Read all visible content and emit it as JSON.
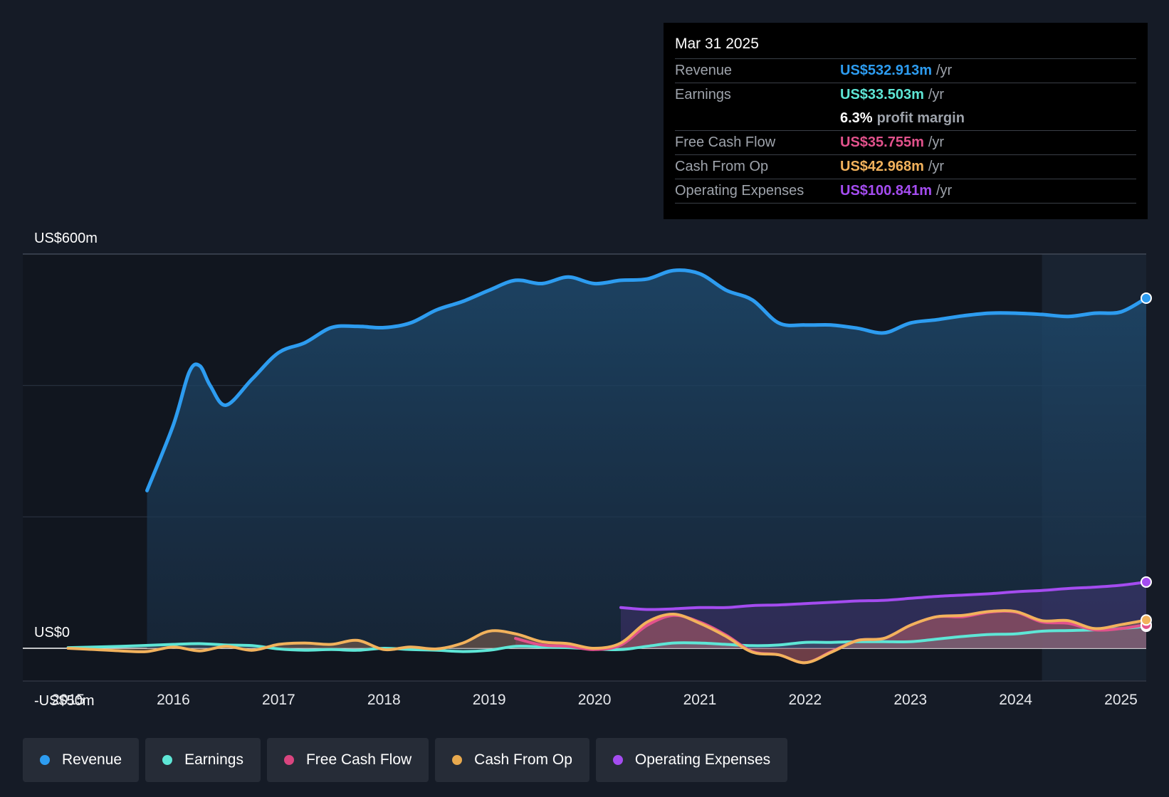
{
  "tooltip": {
    "date": "Mar 31 2025",
    "rows": [
      {
        "name": "Revenue",
        "value": "US$532.913m",
        "unit": "/yr",
        "color": "#2d9cf0"
      },
      {
        "name": "Earnings",
        "value": "US$33.503m",
        "unit": "/yr",
        "color": "#5ee6d6"
      },
      {
        "name": "",
        "value": "6.3%",
        "unit": "profit margin",
        "color": "#ffffff"
      },
      {
        "name": "Free Cash Flow",
        "value": "US$35.755m",
        "unit": "/yr",
        "color": "#e2528c"
      },
      {
        "name": "Cash From Op",
        "value": "US$42.968m",
        "unit": "/yr",
        "color": "#f2b25c"
      },
      {
        "name": "Operating Expenses",
        "value": "US$100.841m",
        "unit": "/yr",
        "color": "#a44cf0"
      }
    ]
  },
  "legend": [
    {
      "label": "Revenue",
      "color": "#2d9cf0"
    },
    {
      "label": "Earnings",
      "color": "#5ee6d6"
    },
    {
      "label": "Free Cash Flow",
      "color": "#d9457f"
    },
    {
      "label": "Cash From Op",
      "color": "#e8a94e"
    },
    {
      "label": "Operating Expenses",
      "color": "#a44cf0"
    }
  ],
  "chart_data": {
    "type": "area",
    "ylim": [
      -50,
      600
    ],
    "y_axis_labels": [
      "US$600m",
      "US$0",
      "-US$50m"
    ],
    "x_ticks": [
      "2015",
      "2016",
      "2017",
      "2018",
      "2019",
      "2020",
      "2021",
      "2022",
      "2023",
      "2024",
      "2025"
    ],
    "xlim": [
      2014.57,
      2025.24
    ],
    "forecast_shade_start": 2024.25,
    "series": [
      {
        "name": "Revenue",
        "color": "#2d9cf0",
        "x": [
          2015.75,
          2016.0,
          2016.15,
          2016.25,
          2016.35,
          2016.5,
          2016.75,
          2017.0,
          2017.25,
          2017.5,
          2017.75,
          2018.0,
          2018.25,
          2018.5,
          2018.75,
          2019.0,
          2019.25,
          2019.5,
          2019.75,
          2020.0,
          2020.25,
          2020.5,
          2020.75,
          2021.0,
          2021.25,
          2021.5,
          2021.75,
          2022.0,
          2022.25,
          2022.5,
          2022.75,
          2023.0,
          2023.25,
          2023.5,
          2023.75,
          2024.0,
          2024.25,
          2024.5,
          2024.75,
          2025.0,
          2025.24
        ],
        "values": [
          240,
          340,
          420,
          430,
          400,
          370,
          410,
          450,
          465,
          488,
          490,
          488,
          495,
          515,
          528,
          545,
          560,
          555,
          565,
          555,
          560,
          562,
          575,
          570,
          545,
          530,
          495,
          492,
          492,
          487,
          480,
          495,
          500,
          506,
          510,
          510,
          508,
          505,
          510,
          512,
          532.9
        ]
      },
      {
        "name": "Earnings",
        "color": "#5ee6d6",
        "x": [
          2015.0,
          2015.5,
          2016.0,
          2016.25,
          2016.5,
          2016.75,
          2017.0,
          2017.25,
          2017.5,
          2017.75,
          2018.0,
          2018.25,
          2018.5,
          2018.75,
          2019.0,
          2019.25,
          2019.5,
          2019.75,
          2020.0,
          2020.25,
          2020.5,
          2020.75,
          2021.0,
          2021.25,
          2021.5,
          2021.75,
          2022.0,
          2022.25,
          2022.5,
          2022.75,
          2023.0,
          2023.25,
          2023.5,
          2023.75,
          2024.0,
          2024.25,
          2024.5,
          2024.75,
          2025.0,
          2025.24
        ],
        "values": [
          1,
          3,
          6,
          7,
          5,
          4,
          -1,
          -3,
          -2,
          -3,
          0,
          -2,
          -3,
          -5,
          -3,
          3,
          2,
          1,
          -1,
          -2,
          3,
          8,
          8,
          6,
          4,
          5,
          9,
          9,
          10,
          10,
          10,
          14,
          18,
          21,
          22,
          26,
          27,
          28,
          30,
          33.5
        ]
      },
      {
        "name": "Free Cash Flow",
        "color": "#e2528c",
        "x": [
          2019.25,
          2019.5,
          2019.75,
          2020.0,
          2020.25,
          2020.5,
          2020.75,
          2021.0,
          2021.25,
          2021.5,
          2021.75,
          2022.0,
          2022.25,
          2022.5,
          2022.75,
          2023.0,
          2023.25,
          2023.5,
          2023.75,
          2024.0,
          2024.25,
          2024.5,
          2024.75,
          2025.0,
          2025.24
        ],
        "values": [
          15,
          5,
          3,
          -2,
          5,
          35,
          50,
          40,
          20,
          -5,
          -10,
          -22,
          -5,
          12,
          15,
          35,
          48,
          48,
          55,
          55,
          40,
          38,
          28,
          30,
          35.8
        ]
      },
      {
        "name": "Cash From Op",
        "color": "#f2b25c",
        "x": [
          2015.0,
          2015.25,
          2015.5,
          2015.75,
          2016.0,
          2016.25,
          2016.5,
          2016.75,
          2017.0,
          2017.25,
          2017.5,
          2017.75,
          2018.0,
          2018.25,
          2018.5,
          2018.75,
          2019.0,
          2019.25,
          2019.5,
          2019.75,
          2020.0,
          2020.25,
          2020.5,
          2020.75,
          2021.0,
          2021.25,
          2021.5,
          2021.75,
          2022.0,
          2022.25,
          2022.5,
          2022.75,
          2023.0,
          2023.25,
          2023.5,
          2023.75,
          2024.0,
          2024.25,
          2024.5,
          2024.75,
          2025.0,
          2025.24
        ],
        "values": [
          0,
          -2,
          -4,
          -5,
          2,
          -4,
          3,
          -3,
          6,
          8,
          6,
          12,
          -2,
          2,
          -1,
          8,
          26,
          22,
          10,
          7,
          0,
          8,
          40,
          52,
          38,
          18,
          -6,
          -10,
          -22,
          -6,
          12,
          15,
          35,
          48,
          50,
          56,
          56,
          42,
          42,
          30,
          36,
          43
        ]
      },
      {
        "name": "Operating Expenses",
        "color": "#a44cf0",
        "x": [
          2020.25,
          2020.5,
          2020.75,
          2021.0,
          2021.25,
          2021.5,
          2021.75,
          2022.0,
          2022.25,
          2022.5,
          2022.75,
          2023.0,
          2023.25,
          2023.5,
          2023.75,
          2024.0,
          2024.25,
          2024.5,
          2024.75,
          2025.0,
          2025.24
        ],
        "values": [
          62,
          59,
          60,
          62,
          62,
          65,
          66,
          68,
          70,
          72,
          73,
          76,
          79,
          81,
          83,
          86,
          88,
          91,
          93,
          96,
          100.8
        ]
      }
    ]
  }
}
